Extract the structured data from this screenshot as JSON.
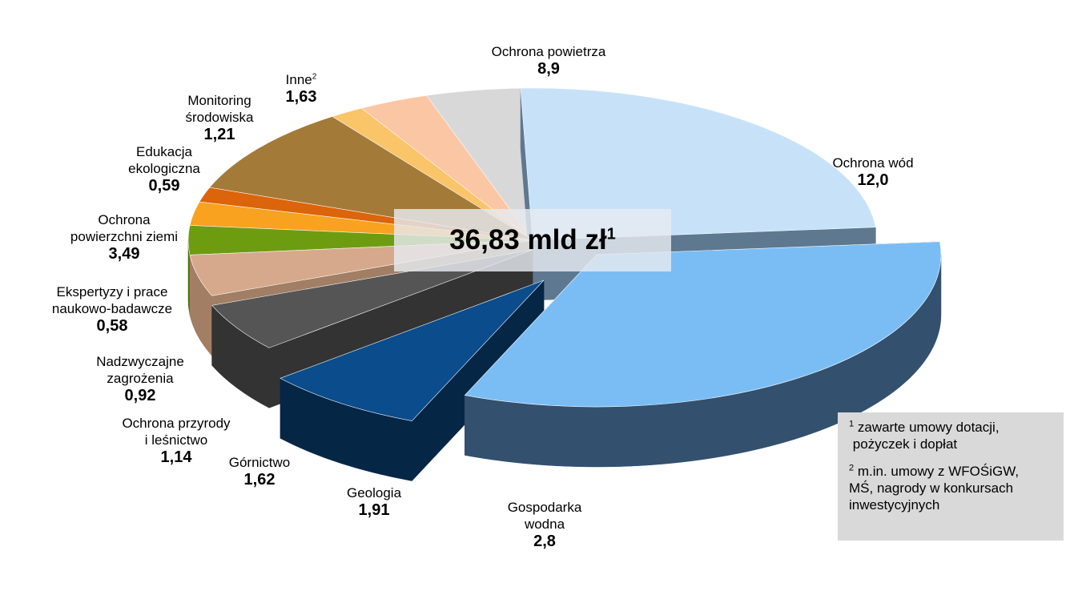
{
  "chart_data": {
    "type": "pie",
    "style": "3d-exploded",
    "title": "",
    "total_label": "36,83 mld zł",
    "total_sup": "1",
    "slices": [
      {
        "name": "Ochrona powietrza",
        "value": 8.9,
        "label_value": "8,9",
        "color": "#c7e2f8",
        "side": "#5e7890"
      },
      {
        "name": "Ochrona wód",
        "value": 12.0,
        "label_value": "12,0",
        "color": "#7abdf5",
        "side": "#33506e"
      },
      {
        "name": "Gospodarka wodna",
        "value": 2.8,
        "label_value": "2,8",
        "color": "#0a4c8c",
        "side": "#062646"
      },
      {
        "name": "Geologia",
        "value": 1.91,
        "label_value": "1,91",
        "color": "#555555",
        "side": "#333333"
      },
      {
        "name": "Górnictwo",
        "value": 1.62,
        "label_value": "1,62",
        "color": "#d6a98c",
        "side": "#a27e64"
      },
      {
        "name": "Ochrona przyrody i leśnictwo",
        "value": 1.14,
        "label_value": "1,14",
        "color": "#6e9c10",
        "side": "#4a6b06"
      },
      {
        "name": "Nadzwyczajne zagrożenia",
        "value": 0.92,
        "label_value": "0,92",
        "color": "#f8a220",
        "side": "#c27a0c"
      },
      {
        "name": "Ekspertyzy i prace naukowo-badawcze",
        "value": 0.58,
        "label_value": "0,58",
        "color": "#dc640a",
        "side": "#9e4204"
      },
      {
        "name": "Ochrona powierzchni ziemi",
        "value": 3.49,
        "label_value": "3,49",
        "color": "#a47a38",
        "side": "#6e4f1e"
      },
      {
        "name": "Edukacja ekologiczna",
        "value": 0.59,
        "label_value": "0,59",
        "color": "#fac468",
        "side": "#c89236"
      },
      {
        "name": "Monitoring środowiska",
        "value": 1.21,
        "label_value": "1,21",
        "color": "#fbc6a4",
        "side": "#c89474"
      },
      {
        "name": "Inne",
        "value": 1.63,
        "label_value": "1,63",
        "color": "#d8d8d8",
        "side": "#7a7a7a",
        "sup": "2"
      }
    ]
  },
  "labels": {
    "ochrona_powietrza": "Ochrona powietrza",
    "ochrona_wod": "Ochrona wód",
    "gospodarka_1": "Gospodarka",
    "gospodarka_2": "wodna",
    "geologia": "Geologia",
    "gornictwo": "Górnictwo",
    "przyroda_1": "Ochrona przyrody",
    "przyroda_2": "i leśnictwo",
    "nadzw_1": "Nadzwyczajne",
    "nadzw_2": "zagrożenia",
    "eksp_1": "Ekspertyzy i prace",
    "eksp_2": "naukowo-badawcze",
    "pow_1": "Ochrona",
    "pow_2": "powierzchni ziemi",
    "edu_1": "Edukacja",
    "edu_2": "ekologiczna",
    "mon_1": "Monitoring",
    "mon_2": "środowiska",
    "inne": "Inne"
  },
  "footnotes": {
    "n1_mark": "1",
    "n1_line1": "zawarte umowy dotacji,",
    "n1_line2": "pożyczek i dopłat",
    "n2_mark": "2",
    "n2_line1": "m.in. umowy z WFOŚiGW,",
    "n2_line2": "MŚ, nagrody w konkursach",
    "n2_line3": "inwestycyjnych"
  }
}
